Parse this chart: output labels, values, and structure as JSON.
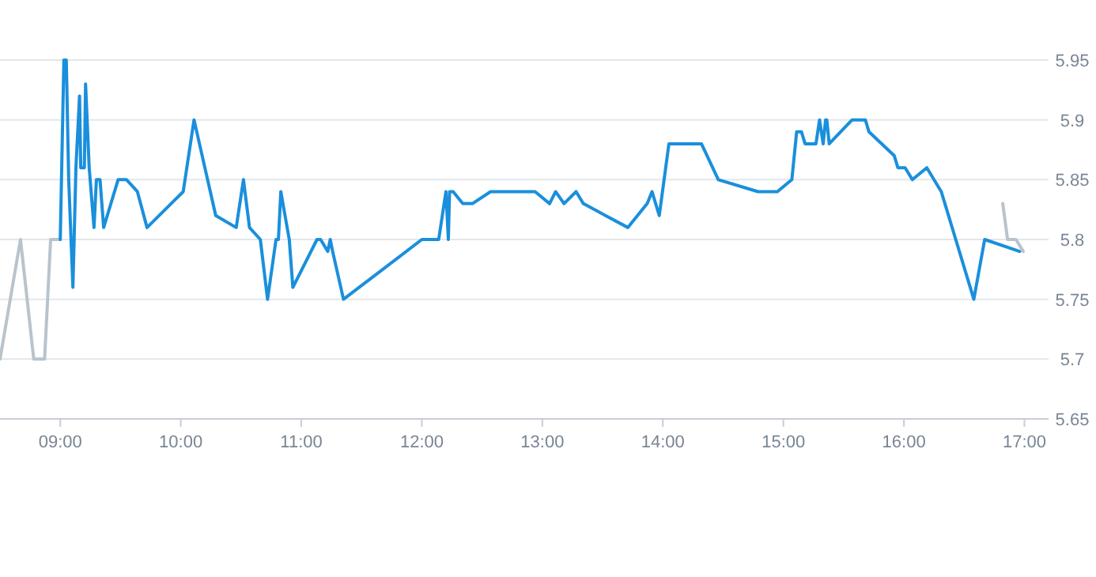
{
  "chart_data": {
    "type": "line",
    "xlim": [
      8.5,
      17.2
    ],
    "ylim": [
      5.65,
      5.95
    ],
    "xticks": [
      {
        "value": 9,
        "label": "09:00"
      },
      {
        "value": 10,
        "label": "10:00"
      },
      {
        "value": 11,
        "label": "11:00"
      },
      {
        "value": 12,
        "label": "12:00"
      },
      {
        "value": 13,
        "label": "13:00"
      },
      {
        "value": 14,
        "label": "14:00"
      },
      {
        "value": 15,
        "label": "15:00"
      },
      {
        "value": 16,
        "label": "16:00"
      },
      {
        "value": 17,
        "label": "17:00"
      }
    ],
    "yticks": [
      5.65,
      5.7,
      5.75,
      5.8,
      5.85,
      5.9,
      5.95
    ],
    "grid": "y",
    "marker": "none",
    "line_style": "solid",
    "series": [
      {
        "color": "#b8c4cc",
        "x": [
          8.5,
          8.67,
          8.78,
          8.87,
          8.92,
          9.0,
          13.0,
          16.82,
          16.86,
          16.93,
          16.99
        ],
        "values": [
          5.7,
          5.8,
          5.7,
          5.7,
          5.8,
          5.8,
          null,
          5.83,
          5.8,
          5.8,
          5.79
        ]
      },
      {
        "color": "#1a8fdc",
        "x": [
          9.0,
          9.03,
          9.05,
          9.07,
          9.105,
          9.13,
          9.16,
          9.17,
          9.2,
          9.21,
          9.24,
          9.28,
          9.3,
          9.33,
          9.36,
          9.48,
          9.55,
          9.64,
          9.72,
          10.02,
          10.11,
          10.29,
          10.46,
          10.52,
          10.57,
          10.66,
          10.72,
          10.79,
          10.81,
          10.83,
          10.9,
          10.93,
          11.13,
          11.16,
          11.22,
          11.24,
          11.26,
          11.35,
          12.0,
          12.14,
          12.2,
          12.22,
          12.23,
          12.26,
          12.34,
          12.42,
          12.57,
          12.94,
          13.06,
          13.11,
          13.18,
          13.28,
          13.34,
          13.71,
          13.87,
          13.91,
          13.97,
          14.05,
          14.32,
          14.46,
          14.79,
          14.95,
          15.07,
          15.11,
          15.15,
          15.18,
          15.27,
          15.3,
          15.33,
          15.35,
          15.36,
          15.38,
          15.57,
          15.68,
          15.71,
          15.92,
          15.95,
          16.01,
          16.07,
          16.19,
          16.31,
          16.58,
          16.67,
          16.96
        ],
        "values": [
          5.8,
          5.95,
          5.95,
          5.85,
          5.76,
          5.86,
          5.92,
          5.86,
          5.86,
          5.93,
          5.86,
          5.81,
          5.85,
          5.85,
          5.81,
          5.85,
          5.85,
          5.84,
          5.81,
          5.84,
          5.9,
          5.82,
          5.81,
          5.85,
          5.81,
          5.8,
          5.75,
          5.8,
          5.8,
          5.84,
          5.8,
          5.76,
          5.8,
          5.8,
          5.79,
          5.8,
          5.79,
          5.75,
          5.8,
          5.8,
          5.84,
          5.8,
          5.84,
          5.84,
          5.83,
          5.83,
          5.84,
          5.84,
          5.83,
          5.84,
          5.83,
          5.84,
          5.83,
          5.81,
          5.83,
          5.84,
          5.82,
          5.88,
          5.88,
          5.85,
          5.84,
          5.84,
          5.85,
          5.89,
          5.89,
          5.88,
          5.88,
          5.9,
          5.88,
          5.9,
          5.9,
          5.88,
          5.9,
          5.9,
          5.89,
          5.87,
          5.86,
          5.86,
          5.85,
          5.86,
          5.84,
          5.75,
          5.8,
          5.79
        ]
      }
    ]
  }
}
